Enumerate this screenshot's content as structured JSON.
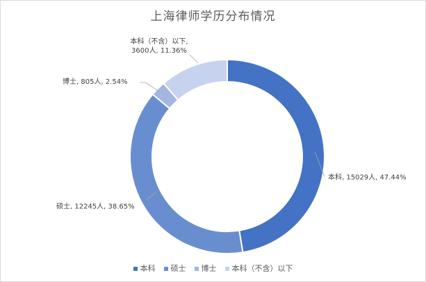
{
  "chart_data": {
    "type": "pie",
    "variant": "donut",
    "title": "上海律师学历分布情况",
    "categories": [
      "本科",
      "硕士",
      "博士",
      "本科（不含）以下"
    ],
    "values": [
      15029,
      12245,
      805,
      3600
    ],
    "percentages": [
      "47.44%",
      "38.65%",
      "2.54%",
      "11.36%"
    ],
    "data_labels": [
      [
        "本科, 15029人, 47.44%"
      ],
      [
        "硕士, 12245人, 38.65%"
      ],
      [
        "博士, 805人, 2.54%"
      ],
      [
        "本科（不含）以下,",
        "3600人, 11.36%"
      ]
    ],
    "colors": [
      "#4472c4",
      "#698ed0",
      "#a2b6e0",
      "#c7d3ee"
    ],
    "legend_position": "bottom"
  }
}
